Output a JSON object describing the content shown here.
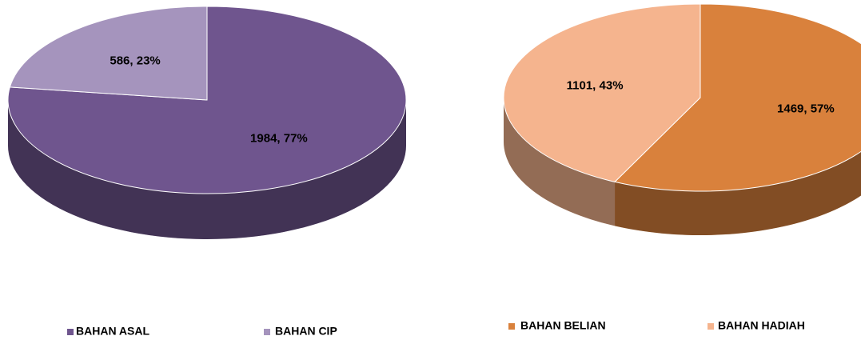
{
  "chart_data": [
    {
      "type": "pie",
      "categories": [
        "BAHAN ASAL",
        "BAHAN CIP"
      ],
      "values": [
        1984,
        586
      ],
      "value_labels": [
        "1984, 77%",
        "586, 23%"
      ],
      "colors": [
        "#6f558e",
        "#a594bd"
      ]
    },
    {
      "type": "pie",
      "categories": [
        "BAHAN BELIAN",
        "BAHAN HADIAH"
      ],
      "values": [
        1469,
        1101
      ],
      "value_labels": [
        "1469, 57%",
        "1101, 43%"
      ],
      "colors": [
        "#d9813c",
        "#f5b48e"
      ]
    }
  ]
}
